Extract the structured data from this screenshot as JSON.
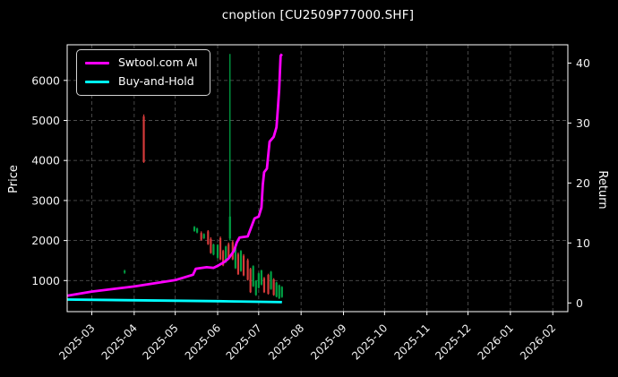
{
  "title": "cnoption [CU2509P77000.SHF]",
  "colors": {
    "background": "#000000",
    "text": "#ffffff",
    "grid": "#4e4e4e",
    "spine": "#ffffff",
    "ai_line": "#ff00ff",
    "bah_line": "#00ffff",
    "candle_up": "#00a244",
    "candle_down": "#d43a3a"
  },
  "legend": {
    "position": "upper-left",
    "items": [
      {
        "label": "Swtool.com AI",
        "color": "#ff00ff"
      },
      {
        "label": "Buy-and-Hold",
        "color": "#00ffff"
      }
    ]
  },
  "chart_data": {
    "type": "candlestick+line",
    "title": "cnoption [CU2509P77000.SHF]",
    "grid": true,
    "x_axis": {
      "domain": [
        "2025-02-11",
        "2026-02-12"
      ],
      "tick_labels": [
        "2025-03",
        "2025-04",
        "2025-05",
        "2025-06",
        "2025-07",
        "2025-08",
        "2025-09",
        "2025-10",
        "2025-11",
        "2025-12",
        "2026-01",
        "2026-02"
      ],
      "tick_rotation_deg": 45
    },
    "left_axis": {
      "label": "Price",
      "ticks": [
        1000,
        2000,
        3000,
        4000,
        5000,
        6000
      ],
      "range": [
        224,
        6890
      ]
    },
    "right_axis": {
      "label": "Return",
      "ticks": [
        0,
        10,
        20,
        30,
        40
      ],
      "range": [
        -1.45,
        43.05
      ]
    },
    "series": [
      {
        "name": "Swtool.com AI",
        "type": "line",
        "axis": "right",
        "color": "#ff00ff",
        "points": [
          [
            "2025-02-11",
            1.2
          ],
          [
            "2025-03-01",
            1.9
          ],
          [
            "2025-04-01",
            2.75
          ],
          [
            "2025-05-01",
            3.8
          ],
          [
            "2025-05-14",
            4.7
          ],
          [
            "2025-05-16",
            5.7
          ],
          [
            "2025-05-24",
            5.95
          ],
          [
            "2025-05-29",
            5.85
          ],
          [
            "2025-06-02",
            6.3
          ],
          [
            "2025-06-06",
            6.85
          ],
          [
            "2025-06-09",
            7.4
          ],
          [
            "2025-06-13",
            8.7
          ],
          [
            "2025-06-15",
            10.1
          ],
          [
            "2025-06-17",
            10.9
          ],
          [
            "2025-06-20",
            11.0
          ],
          [
            "2025-06-23",
            11.1
          ],
          [
            "2025-06-26",
            12.9
          ],
          [
            "2025-06-28",
            14.1
          ],
          [
            "2025-07-01",
            14.4
          ],
          [
            "2025-07-03",
            15.9
          ],
          [
            "2025-07-04",
            19.7
          ],
          [
            "2025-07-05",
            21.8
          ],
          [
            "2025-07-07",
            22.4
          ],
          [
            "2025-07-09",
            26.9
          ],
          [
            "2025-07-12",
            27.7
          ],
          [
            "2025-07-14",
            29.3
          ],
          [
            "2025-07-15",
            32.3
          ],
          [
            "2025-07-16",
            35.6
          ],
          [
            "2025-07-17",
            41.2
          ],
          [
            "2025-07-18",
            41.5
          ]
        ]
      },
      {
        "name": "Buy-and-Hold",
        "type": "line",
        "axis": "right",
        "color": "#00ffff",
        "points": [
          [
            "2025-02-11",
            0.57
          ],
          [
            "2025-04-01",
            0.45
          ],
          [
            "2025-06-01",
            0.3
          ],
          [
            "2025-07-18",
            0.13
          ]
        ]
      }
    ],
    "candlesticks": {
      "axis": "left",
      "up_color": "#00a244",
      "down_color": "#d43a3a",
      "columns": [
        "date",
        "open",
        "high",
        "low",
        "close"
      ],
      "data": [
        [
          "2025-03-25",
          1200,
          1270,
          1170,
          1240
        ],
        [
          "2025-04-08",
          5100,
          5150,
          3940,
          3960
        ],
        [
          "2025-05-15",
          2240,
          2360,
          2220,
          2340
        ],
        [
          "2025-05-17",
          2200,
          2320,
          2180,
          2300
        ],
        [
          "2025-05-20",
          2190,
          2230,
          2000,
          2020
        ],
        [
          "2025-05-22",
          2060,
          2180,
          2040,
          2160
        ],
        [
          "2025-05-25",
          2230,
          2260,
          1890,
          1910
        ],
        [
          "2025-05-27",
          2040,
          2080,
          1670,
          1690
        ],
        [
          "2025-05-29",
          1650,
          1920,
          1630,
          1900
        ],
        [
          "2025-06-01",
          1570,
          1910,
          1550,
          1890
        ],
        [
          "2025-06-03",
          2060,
          2100,
          1510,
          1530
        ],
        [
          "2025-06-05",
          1740,
          1770,
          1360,
          1380
        ],
        [
          "2025-06-07",
          1460,
          1870,
          1440,
          1850
        ],
        [
          "2025-06-09",
          1910,
          1950,
          1560,
          1580
        ],
        [
          "2025-06-10",
          2050,
          6660,
          2000,
          2600
        ],
        [
          "2025-06-12",
          1960,
          2000,
          1510,
          1530
        ],
        [
          "2025-06-14",
          1310,
          1870,
          1290,
          1850
        ],
        [
          "2025-06-16",
          1660,
          1700,
          1140,
          1160
        ],
        [
          "2025-06-18",
          1240,
          1760,
          1220,
          1740
        ],
        [
          "2025-06-20",
          1620,
          1660,
          1110,
          1130
        ],
        [
          "2025-06-23",
          1510,
          1550,
          1000,
          1020
        ],
        [
          "2025-06-25",
          1290,
          1320,
          690,
          710
        ],
        [
          "2025-06-27",
          860,
          1380,
          840,
          1360
        ],
        [
          "2025-06-29",
          640,
          1010,
          620,
          990
        ],
        [
          "2025-07-01",
          820,
          1200,
          800,
          1180
        ],
        [
          "2025-07-03",
          900,
          1270,
          880,
          1250
        ],
        [
          "2025-07-05",
          1060,
          1090,
          690,
          710
        ],
        [
          "2025-07-08",
          1140,
          1170,
          650,
          670
        ],
        [
          "2025-07-10",
          790,
          1240,
          770,
          1220
        ],
        [
          "2025-07-12",
          1030,
          1060,
          620,
          640
        ],
        [
          "2025-07-14",
          600,
          970,
          580,
          950
        ],
        [
          "2025-07-16",
          560,
          900,
          540,
          880
        ],
        [
          "2025-07-18",
          590,
          860,
          570,
          840
        ]
      ]
    }
  }
}
